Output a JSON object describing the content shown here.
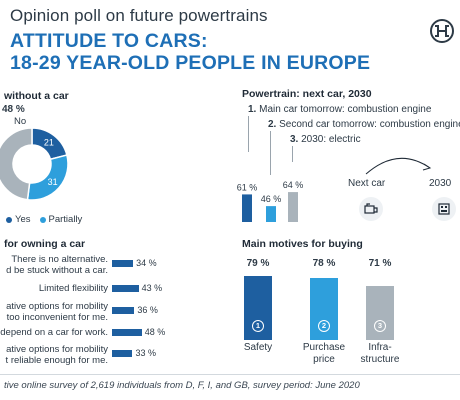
{
  "header": {
    "pretitle": "Opinion poll on future powertrains",
    "title_line1": "ATTITUDE TO CARS:",
    "title_line2": "18-29 YEAR-OLD PEOPLE IN EUROPE"
  },
  "colors": {
    "dark_blue": "#1e5fa0",
    "light_blue": "#2e9fdc",
    "gray": "#a9b3bb",
    "brand_accent": "#1e6fb6"
  },
  "icons": {
    "logo": "bosch-armature-logo",
    "next_car": "combustion-car-icon",
    "year_2030": "electric-plug-icon",
    "arrow": "curved-arrow"
  },
  "chart_data": [
    {
      "type": "pie",
      "title": "without a car",
      "slices": [
        {
          "label": "No",
          "value": 48,
          "display": "48 %",
          "color": "#a9b3bb"
        },
        {
          "label": "Yes",
          "value": 21,
          "display": "21",
          "color": "#1e5fa0"
        },
        {
          "label": "Partially",
          "value": 31,
          "display": "31",
          "color": "#2e9fdc"
        }
      ],
      "legend": [
        "Yes",
        "Partially"
      ]
    },
    {
      "type": "bar",
      "title": "Powertrain: next car, 2030",
      "items": [
        {
          "num": "1.",
          "label": "Main car tomorrow: combustion engine"
        },
        {
          "num": "2.",
          "label": "Second car tomorrow: combustion engine"
        },
        {
          "num": "3.",
          "label": "2030: electric"
        }
      ],
      "values": [
        61,
        46,
        64
      ],
      "value_labels": [
        "61 %",
        "46 %",
        "64 %"
      ],
      "colors": [
        "#1e5fa0",
        "#2e9fdc",
        "#a9b3bb"
      ],
      "next_car_label": "Next car",
      "year_label": "2030"
    },
    {
      "type": "bar",
      "orientation": "horizontal",
      "title": "for owning a car",
      "categories": [
        [
          "There is no alternative.",
          "d be stuck without a car."
        ],
        [
          "Limited flexibility"
        ],
        [
          "ative options for mobility",
          "too inconvenient for me."
        ],
        [
          "depend on a car for work."
        ],
        [
          "ative options for mobility",
          "t reliable enough for me."
        ]
      ],
      "values": [
        34,
        43,
        36,
        48,
        33
      ],
      "value_labels": [
        "34 %",
        "43 %",
        "36 %",
        "48 %",
        "33 %"
      ],
      "color": "#1e5fa0"
    },
    {
      "type": "bar",
      "title": "Main motives for buying",
      "categories": [
        "Safety",
        "Purchase price",
        "Infra-structure"
      ],
      "category_lines": [
        [
          "Safety"
        ],
        [
          "Purchase",
          "price"
        ],
        [
          "Infra-",
          "structure"
        ]
      ],
      "values": [
        79,
        78,
        71
      ],
      "value_labels": [
        "79 %",
        "78 %",
        "71 %"
      ],
      "ranks": [
        "1",
        "2",
        "3"
      ],
      "colors": [
        "#1e5fa0",
        "#2e9fdc",
        "#a9b3bb"
      ]
    }
  ],
  "footer": "tive online survey of 2,619 individuals from D, F, I, and GB, survey period: June 2020"
}
